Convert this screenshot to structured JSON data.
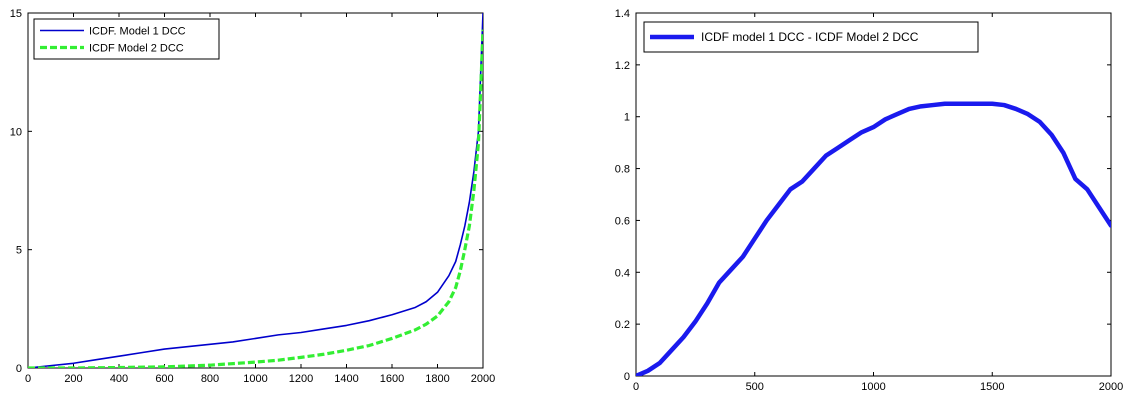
{
  "chart_data": [
    {
      "type": "line",
      "title": "",
      "xlabel": "",
      "ylabel": "",
      "xlim": [
        0,
        2000
      ],
      "ylim": [
        0,
        15
      ],
      "xticks": [
        0,
        200,
        400,
        600,
        800,
        1000,
        1200,
        1400,
        1600,
        1800,
        2000
      ],
      "yticks": [
        0,
        5,
        10,
        15
      ],
      "grid": false,
      "legend_position": "top-left",
      "series": [
        {
          "name": "ICDF. Model 1 DCC",
          "color": "#0000cc",
          "style": "solid",
          "x": [
            0,
            100,
            200,
            300,
            400,
            500,
            600,
            700,
            800,
            900,
            1000,
            1100,
            1200,
            1300,
            1400,
            1500,
            1600,
            1700,
            1750,
            1800,
            1850,
            1880,
            1900,
            1920,
            1940,
            1960,
            1980,
            1990,
            2000
          ],
          "y": [
            0.0,
            0.1,
            0.2,
            0.35,
            0.5,
            0.65,
            0.8,
            0.9,
            1.0,
            1.1,
            1.25,
            1.4,
            1.5,
            1.65,
            1.8,
            2.0,
            2.25,
            2.55,
            2.8,
            3.2,
            3.9,
            4.5,
            5.2,
            6.0,
            7.0,
            8.3,
            10.0,
            12.5,
            15.0
          ]
        },
        {
          "name": "ICDF Model 2 DCC",
          "color": "#33ee33",
          "style": "dashed",
          "x": [
            0,
            200,
            400,
            600,
            800,
            1000,
            1100,
            1200,
            1300,
            1400,
            1500,
            1600,
            1700,
            1750,
            1800,
            1850,
            1880,
            1900,
            1920,
            1940,
            1960,
            1980,
            1990,
            2000
          ],
          "y": [
            0.0,
            0.0,
            0.02,
            0.05,
            0.12,
            0.25,
            0.33,
            0.45,
            0.58,
            0.75,
            0.95,
            1.25,
            1.6,
            1.85,
            2.2,
            2.8,
            3.4,
            4.1,
            5.0,
            6.0,
            7.5,
            9.5,
            11.8,
            14.3
          ]
        }
      ]
    },
    {
      "type": "line",
      "title": "",
      "xlabel": "",
      "ylabel": "",
      "xlim": [
        0,
        2000
      ],
      "ylim": [
        0,
        1.4
      ],
      "xticks": [
        0,
        500,
        1000,
        1500,
        2000
      ],
      "yticks": [
        0,
        0.2,
        0.4,
        0.6,
        0.8,
        1,
        1.2,
        1.4
      ],
      "grid": false,
      "legend_position": "top-left",
      "series": [
        {
          "name": "ICDF model 1 DCC - ICDF Model 2 DCC",
          "color": "#1a1aee",
          "style": "solid-thick",
          "x": [
            0,
            50,
            100,
            150,
            200,
            250,
            300,
            350,
            400,
            450,
            500,
            550,
            600,
            650,
            700,
            750,
            800,
            850,
            900,
            950,
            1000,
            1050,
            1100,
            1150,
            1200,
            1250,
            1300,
            1350,
            1400,
            1450,
            1500,
            1550,
            1600,
            1650,
            1700,
            1750,
            1800,
            1850,
            1900,
            1950,
            2000
          ],
          "y": [
            0.0,
            0.02,
            0.05,
            0.1,
            0.15,
            0.21,
            0.28,
            0.36,
            0.41,
            0.46,
            0.53,
            0.6,
            0.66,
            0.72,
            0.75,
            0.8,
            0.85,
            0.88,
            0.91,
            0.94,
            0.96,
            0.99,
            1.01,
            1.03,
            1.04,
            1.045,
            1.05,
            1.05,
            1.05,
            1.05,
            1.05,
            1.045,
            1.03,
            1.01,
            0.98,
            0.93,
            0.86,
            0.76,
            0.72,
            0.65,
            0.58
          ]
        }
      ]
    }
  ]
}
